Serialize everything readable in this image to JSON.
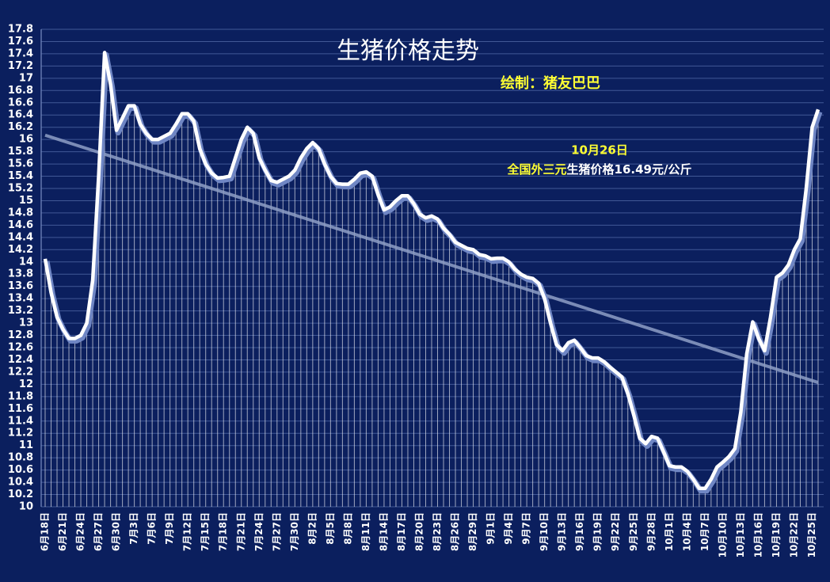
{
  "chart_data": {
    "type": "line",
    "title": "生猪价格走势",
    "credit": "绘制：猪友巴巴",
    "annotation": {
      "date": "10月26日",
      "breed": "全国外三元",
      "text": "生猪价格16.49元/公斤"
    },
    "categories": [
      "6月18日",
      null,
      null,
      "6月21日",
      null,
      null,
      "6月24日",
      null,
      null,
      "6月27日",
      null,
      null,
      "6月30日",
      null,
      null,
      "7月3日",
      null,
      null,
      "7月6日",
      null,
      null,
      "7月9日",
      null,
      null,
      "7月12日",
      null,
      null,
      "7月15日",
      null,
      null,
      "7月18日",
      null,
      null,
      "7月21日",
      null,
      null,
      "7月24日",
      null,
      null,
      "7月27日",
      null,
      null,
      "7月30日",
      null,
      null,
      "8月2日",
      null,
      null,
      "8月5日",
      null,
      null,
      "8月8日",
      null,
      null,
      "8月11日",
      null,
      null,
      "8月14日",
      null,
      null,
      "8月17日",
      null,
      null,
      "8月20日",
      null,
      null,
      "8月23日",
      null,
      null,
      "8月26日",
      null,
      null,
      "8月29日",
      null,
      null,
      "9月1日",
      null,
      null,
      "9月4日",
      null,
      null,
      "9月7日",
      null,
      null,
      "9月10日",
      null,
      null,
      "9月13日",
      null,
      null,
      "9月16日",
      null,
      null,
      "9月19日",
      null,
      null,
      "9月22日",
      null,
      null,
      "9月25日",
      null,
      null,
      "9月28日",
      null,
      null,
      "10月1日",
      null,
      null,
      "10月4日",
      null,
      null,
      "10月7日",
      null,
      null,
      "10月10日",
      null,
      null,
      "10月13日",
      null,
      null,
      "10月16日",
      null,
      null,
      "10月19日",
      null,
      null,
      "10月22日",
      null,
      null,
      "10月25日",
      null
    ],
    "values": [
      14.05,
      13.5,
      13.1,
      12.9,
      12.75,
      12.75,
      12.8,
      13.0,
      13.7,
      15.4,
      17.42,
      16.9,
      16.15,
      16.35,
      16.55,
      16.55,
      16.25,
      16.1,
      16.0,
      16.0,
      16.05,
      16.1,
      16.25,
      16.42,
      16.42,
      16.3,
      15.85,
      15.6,
      15.45,
      15.37,
      15.38,
      15.4,
      15.7,
      16.0,
      16.2,
      16.1,
      15.7,
      15.5,
      15.33,
      15.3,
      15.35,
      15.4,
      15.5,
      15.7,
      15.85,
      15.95,
      15.85,
      15.6,
      15.4,
      15.28,
      15.27,
      15.27,
      15.35,
      15.45,
      15.47,
      15.4,
      15.1,
      14.85,
      14.9,
      15.0,
      15.08,
      15.08,
      14.95,
      14.78,
      14.72,
      14.75,
      14.7,
      14.55,
      14.45,
      14.32,
      14.27,
      14.22,
      14.2,
      14.12,
      14.1,
      14.05,
      14.06,
      14.06,
      14.0,
      13.88,
      13.8,
      13.75,
      13.73,
      13.65,
      13.4,
      13.0,
      12.65,
      12.55,
      12.68,
      12.72,
      12.6,
      12.47,
      12.43,
      12.43,
      12.37,
      12.28,
      12.2,
      12.12,
      11.85,
      11.5,
      11.12,
      11.03,
      11.15,
      11.12,
      10.9,
      10.67,
      10.65,
      10.65,
      10.58,
      10.45,
      10.3,
      10.3,
      10.45,
      10.65,
      10.73,
      10.82,
      10.95,
      11.55,
      12.5,
      13.02,
      12.75,
      12.55,
      13.1,
      13.75,
      13.82,
      13.95,
      14.2,
      14.38,
      15.2,
      16.2,
      16.49
    ],
    "color": "#ffffff",
    "trendline": {
      "values": [
        16.07,
        12.03
      ],
      "color": "#8e9fc6"
    },
    "ylim": [
      10,
      17.8
    ],
    "yticks": [
      10,
      10.2,
      10.4,
      10.6,
      10.8,
      11,
      11.2,
      11.4,
      11.6,
      11.8,
      12,
      12.2,
      12.4,
      12.6,
      12.8,
      13,
      13.2,
      13.4,
      13.6,
      13.8,
      14,
      14.2,
      14.4,
      14.6,
      14.8,
      15,
      15.2,
      15.4,
      15.6,
      15.8,
      16,
      16.2,
      16.4,
      16.6,
      16.8,
      17,
      17.2,
      17.4,
      17.6,
      17.8
    ],
    "grid": true
  }
}
